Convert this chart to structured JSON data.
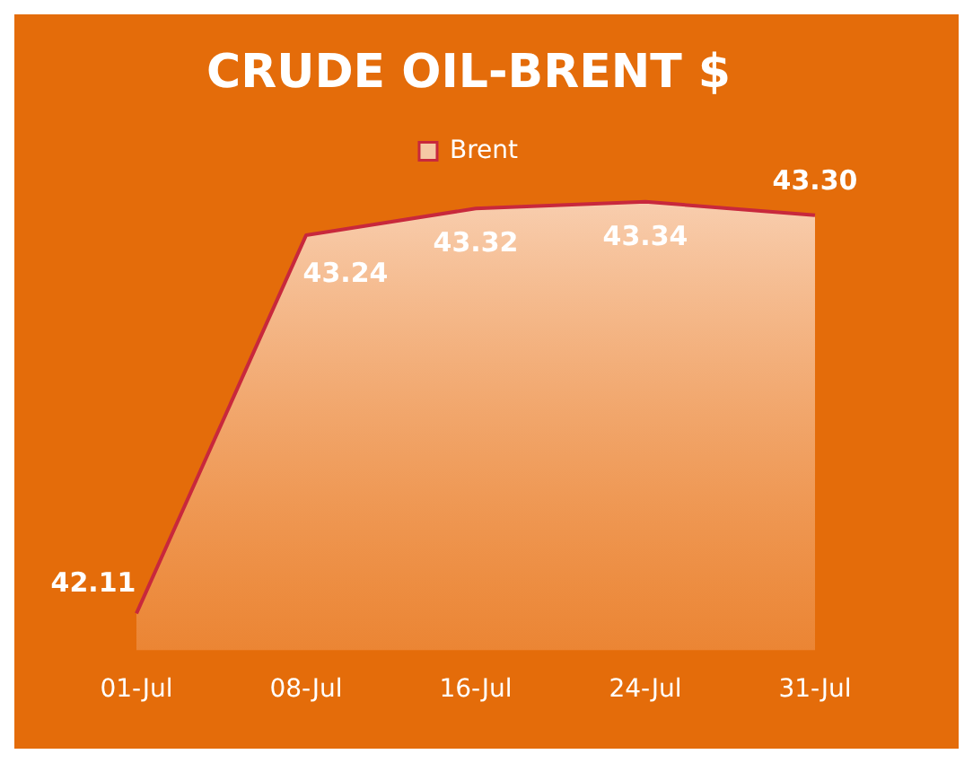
{
  "chart_data": {
    "type": "area",
    "title": "CRUDE OIL-BRENT $",
    "categories": [
      "01-Jul",
      "08-Jul",
      "16-Jul",
      "24-Jul",
      "31-Jul"
    ],
    "series": [
      {
        "name": "Brent",
        "color": "#c8283c",
        "values": [
          42.11,
          43.24,
          43.32,
          43.34,
          43.3
        ],
        "value_labels": [
          "42.11",
          "43.24",
          "43.32",
          "43.34",
          "43.30"
        ]
      }
    ],
    "tick_labels": "x",
    "legend": "top"
  }
}
